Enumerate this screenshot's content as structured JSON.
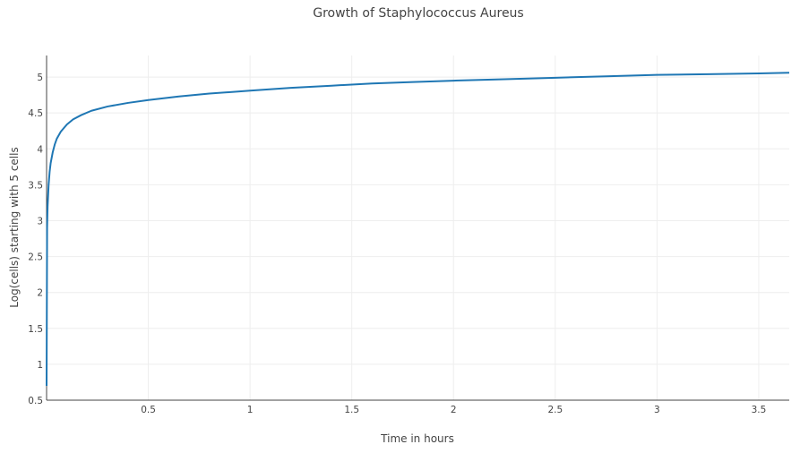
{
  "chart_data": {
    "type": "line",
    "title": "Growth of Staphylococcus Aureus",
    "xlabel": "Time in hours",
    "ylabel": "Log(cells) starting with 5 cells",
    "xlim": [
      0,
      3.65
    ],
    "ylim": [
      0.5,
      5.3
    ],
    "x_ticks": [
      0.5,
      1,
      1.5,
      2,
      2.5,
      3,
      3.5
    ],
    "x_tick_labels": [
      "0.5",
      "1",
      "1.5",
      "2",
      "2.5",
      "3",
      "3.5"
    ],
    "y_ticks": [
      0.5,
      1,
      1.5,
      2,
      2.5,
      3,
      3.5,
      4,
      4.5,
      5
    ],
    "y_tick_labels": [
      "0.5",
      "1",
      "1.5",
      "2",
      "2.5",
      "3",
      "3.5",
      "4",
      "4.5",
      "5"
    ],
    "grid": true,
    "series": [
      {
        "color": "#1f77b4",
        "x": [
          0,
          0.0025,
          0.005,
          0.01,
          0.015,
          0.02,
          0.03,
          0.04,
          0.05,
          0.07,
          0.1,
          0.13,
          0.17,
          0.22,
          0.3,
          0.4,
          0.5,
          0.65,
          0.8,
          1.0,
          1.2,
          1.4,
          1.6,
          1.8,
          2.0,
          2.25,
          2.5,
          2.75,
          3.0,
          3.25,
          3.5,
          3.65
        ],
        "y": [
          0.7,
          2.9,
          3.2,
          3.5,
          3.68,
          3.8,
          3.95,
          4.06,
          4.14,
          4.24,
          4.34,
          4.41,
          4.47,
          4.53,
          4.59,
          4.64,
          4.68,
          4.73,
          4.77,
          4.81,
          4.85,
          4.88,
          4.91,
          4.93,
          4.95,
          4.97,
          4.99,
          5.01,
          5.03,
          5.04,
          5.05,
          5.06
        ]
      }
    ]
  }
}
